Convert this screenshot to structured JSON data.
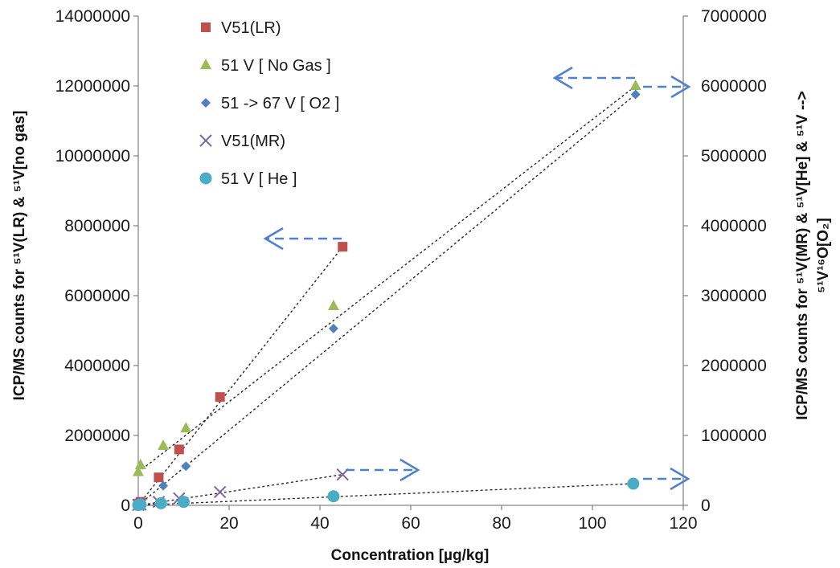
{
  "chart_data": {
    "type": "scatter",
    "xlabel": "Concentration [µg/kg]",
    "ylabel_left": "ICP/MS counts for ⁵¹V(LR) & ⁵¹V[no gas]",
    "ylabel_right_line1": "ICP/MS counts for ⁵¹V(MR) & ⁵¹V[He] & ⁵¹V -->",
    "ylabel_right_line2": "⁵¹V¹⁶O[O₂]",
    "xlim": [
      0,
      120
    ],
    "ylim_left": [
      0,
      14000000
    ],
    "ylim_right": [
      0,
      7000000
    ],
    "x_ticks": [
      "0",
      "20",
      "40",
      "60",
      "80",
      "100",
      "120"
    ],
    "y_ticks_left": [
      "0",
      "2000000",
      "4000000",
      "6000000",
      "8000000",
      "10000000",
      "12000000",
      "14000000"
    ],
    "y_ticks_right": [
      "0",
      "1000000",
      "2000000",
      "3000000",
      "4000000",
      "5000000",
      "6000000",
      "7000000"
    ],
    "grid": false,
    "legend_position": "top-left",
    "series": [
      {
        "name": "V51(LR)",
        "axis": "left",
        "marker": "square",
        "color": "#c0504d",
        "x": [
          0,
          0.5,
          4.5,
          9,
          18,
          45
        ],
        "y": [
          50000,
          100000,
          800000,
          1600000,
          3100000,
          7400000
        ],
        "trendline": [
          [
            0,
            0
          ],
          [
            45,
            7400000
          ]
        ]
      },
      {
        "name": "51  V  [ No Gas ]",
        "axis": "left",
        "marker": "triangle",
        "color": "#9bbb59",
        "x": [
          0,
          0.5,
          5.5,
          10.5,
          43,
          109.5
        ],
        "y": [
          950000,
          1150000,
          1700000,
          2200000,
          5700000,
          12000000
        ],
        "trendline": [
          [
            0,
            950000
          ],
          [
            109.5,
            12000000
          ]
        ]
      },
      {
        "name": "51 -> 67  V  [ O2 ]",
        "axis": "right",
        "marker": "diamond",
        "color": "#4f81bd",
        "x": [
          0,
          0.5,
          5.5,
          10.5,
          43,
          109.5
        ],
        "y": [
          10000,
          50000,
          280000,
          560000,
          2530000,
          5880000
        ],
        "trendline": [
          [
            0,
            0
          ],
          [
            109.5,
            5880000
          ]
        ]
      },
      {
        "name": "V51(MR)",
        "axis": "right",
        "marker": "x",
        "color": "#8064a2",
        "x": [
          0,
          0.5,
          4.5,
          9,
          18,
          45
        ],
        "y": [
          5000,
          10000,
          50000,
          100000,
          190000,
          440000
        ],
        "trendline": [
          [
            0,
            0
          ],
          [
            45,
            440000
          ]
        ]
      },
      {
        "name": "51  V  [ He ]",
        "axis": "right",
        "marker": "circle",
        "color": "#4bacc6",
        "x": [
          0,
          0.5,
          5,
          10,
          43,
          109
        ],
        "y": [
          5000,
          10000,
          30000,
          50000,
          130000,
          310000
        ],
        "trendline": [
          [
            0,
            0
          ],
          [
            109,
            310000
          ]
        ]
      }
    ]
  }
}
